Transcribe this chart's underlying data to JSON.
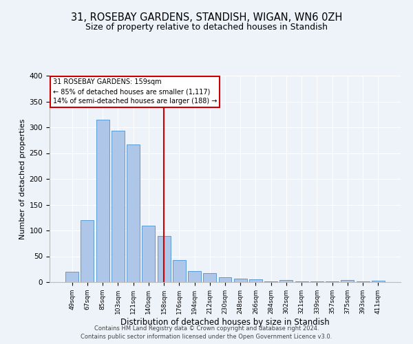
{
  "title": "31, ROSEBAY GARDENS, STANDISH, WIGAN, WN6 0ZH",
  "subtitle": "Size of property relative to detached houses in Standish",
  "xlabel": "Distribution of detached houses by size in Standish",
  "ylabel": "Number of detached properties",
  "bar_labels": [
    "49sqm",
    "67sqm",
    "85sqm",
    "103sqm",
    "121sqm",
    "140sqm",
    "158sqm",
    "176sqm",
    "194sqm",
    "212sqm",
    "230sqm",
    "248sqm",
    "266sqm",
    "284sqm",
    "302sqm",
    "321sqm",
    "339sqm",
    "357sqm",
    "375sqm",
    "393sqm",
    "411sqm"
  ],
  "bar_heights": [
    20,
    120,
    315,
    293,
    267,
    110,
    90,
    43,
    22,
    17,
    9,
    7,
    5,
    2,
    4,
    2,
    2,
    1,
    4,
    1,
    3
  ],
  "bar_color": "#aec6e8",
  "bar_edge_color": "#5b9bd5",
  "vline_x": 6,
  "vline_color": "#cc0000",
  "ylim": [
    0,
    400
  ],
  "yticks": [
    0,
    50,
    100,
    150,
    200,
    250,
    300,
    350,
    400
  ],
  "annotation_title": "31 ROSEBAY GARDENS: 159sqm",
  "annotation_line1": "← 85% of detached houses are smaller (1,117)",
  "annotation_line2": "14% of semi-detached houses are larger (188) →",
  "annotation_box_color": "#ffffff",
  "annotation_box_edge_color": "#cc0000",
  "footer_line1": "Contains HM Land Registry data © Crown copyright and database right 2024.",
  "footer_line2": "Contains public sector information licensed under the Open Government Licence v3.0.",
  "background_color": "#eef2f9",
  "grid_color": "#ffffff",
  "title_fontsize": 10.5,
  "subtitle_fontsize": 9,
  "xlabel_fontsize": 8.5,
  "ylabel_fontsize": 8
}
